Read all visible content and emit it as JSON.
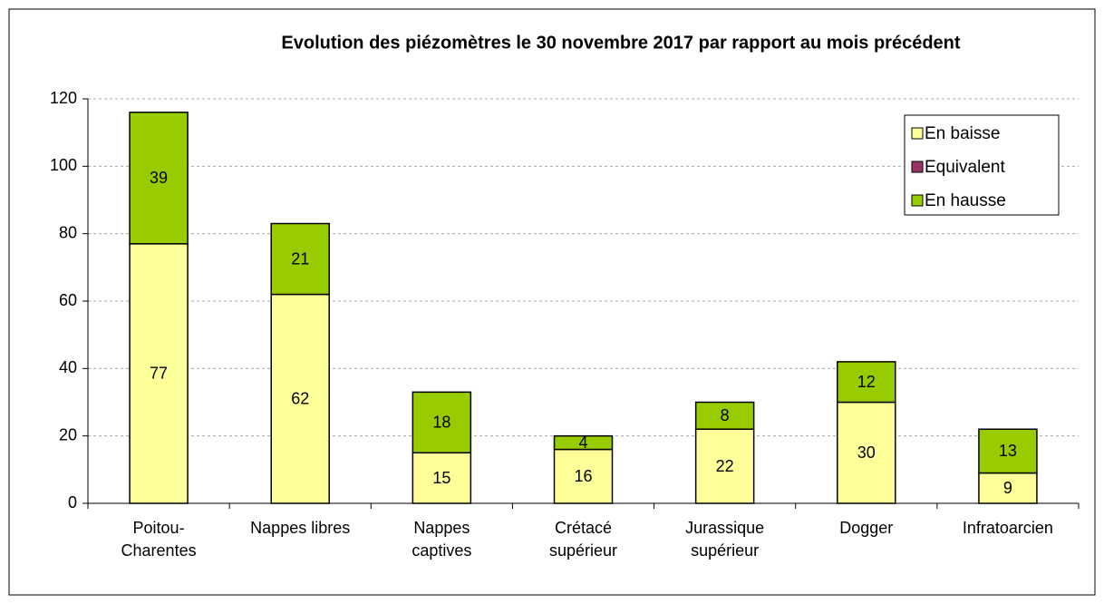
{
  "chart_data": {
    "type": "stacked_bar",
    "title": "Evolution des piézomètres le 30 novembre 2017 par rapport au mois précédent",
    "categories": [
      "Poitou-\nCharentes",
      "Nappes libres",
      "Nappes\ncaptives",
      "Crétacé\nsupérieur",
      "Jurassique\nsupérieur",
      "Dogger",
      "Infratoarcien"
    ],
    "series": [
      {
        "name": "En baisse",
        "color": "#ffff99",
        "values": [
          77,
          62,
          15,
          16,
          22,
          30,
          9
        ]
      },
      {
        "name": "Equivalent",
        "color": "#993366",
        "values": [
          0,
          0,
          0,
          0,
          0,
          0,
          0
        ]
      },
      {
        "name": "En hausse",
        "color": "#99cc00",
        "values": [
          39,
          21,
          18,
          4,
          8,
          12,
          13
        ]
      }
    ],
    "ylim": [
      0,
      120
    ],
    "yticks": [
      0,
      20,
      40,
      60,
      80,
      100,
      120
    ],
    "grid": true,
    "legend": "upper right"
  }
}
